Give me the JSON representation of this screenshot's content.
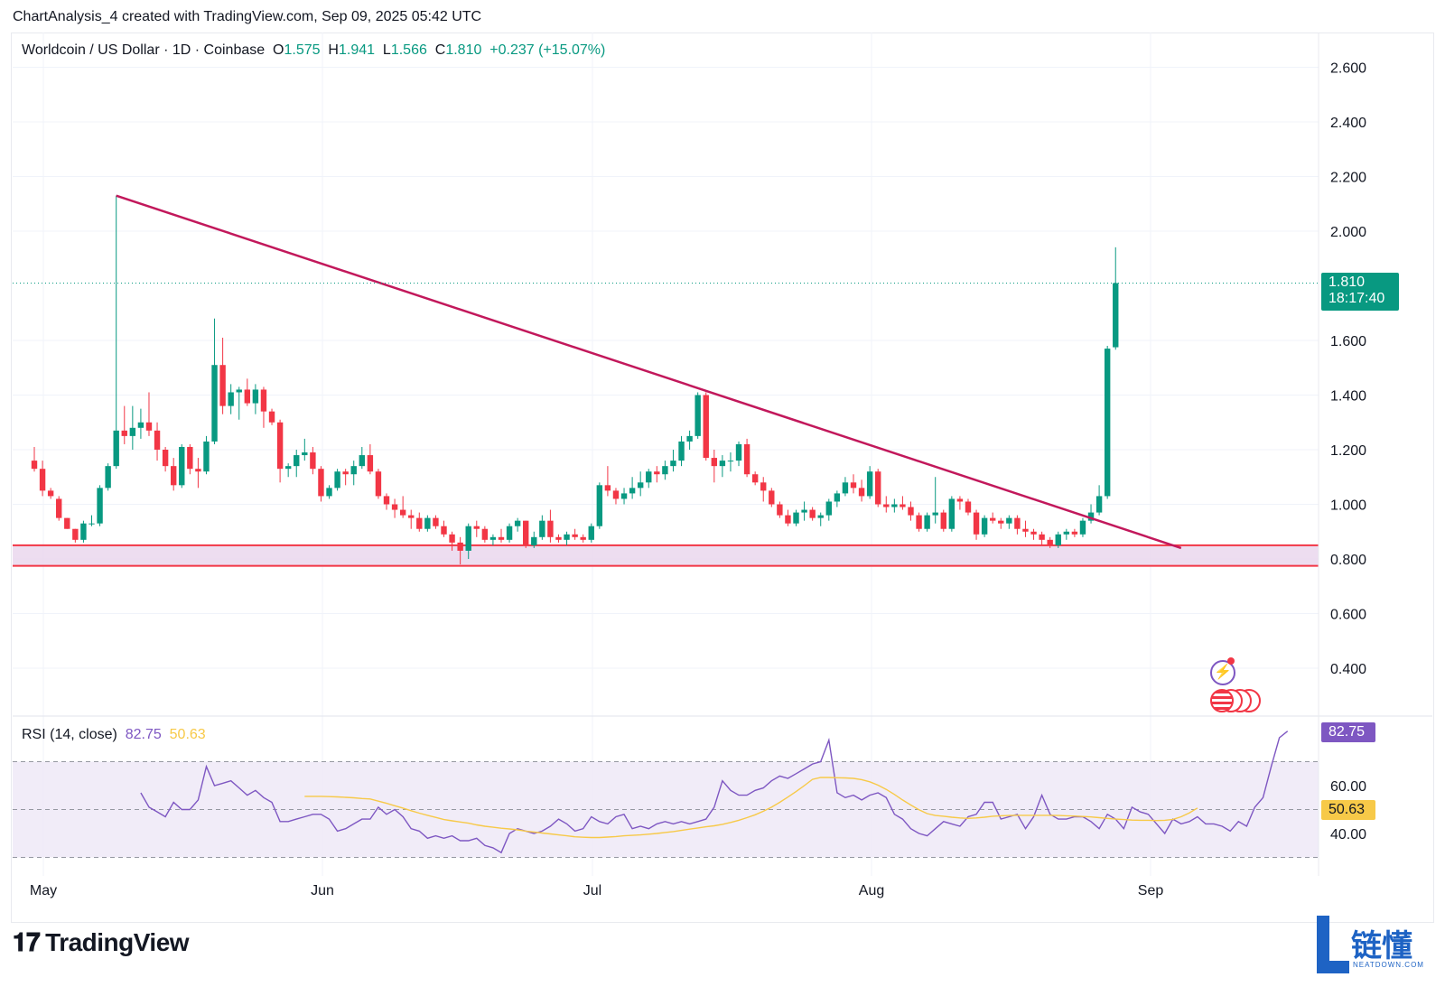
{
  "header": {
    "title": "ChartAnalysis_4 created with TradingView.com, Sep 09, 2025 05:42 UTC"
  },
  "legend": {
    "symbol": "Worldcoin / US Dollar · 1D · Coinbase",
    "o_label": "O",
    "o_value": "1.575",
    "h_label": "H",
    "h_value": "1.941",
    "l_label": "L",
    "l_value": "1.566",
    "c_label": "C",
    "c_value": "1.810",
    "change": "+0.237 (+15.07%)"
  },
  "price_tag": {
    "price": "1.810",
    "countdown": "18:17:40"
  },
  "rsi_legend": {
    "label": "RSI (14, close)",
    "rsi": "82.75",
    "ma": "50.63"
  },
  "rsi_tag": "82.75",
  "rsi_ma_tag": "50.63",
  "logo": {
    "text": "TradingView"
  },
  "watermark": {
    "text": "链懂",
    "sub": "NEATDOWN.COM"
  },
  "colors": {
    "up": "#089981",
    "down": "#f23645",
    "trendline": "#c2185b",
    "support_fill": "#e8d4ec",
    "rsi_line": "#7e57c2",
    "rsi_ma": "#f7c948",
    "rsi_band": "#ede7f6"
  },
  "chart_data": [
    {
      "type": "candlestick",
      "title": "Worldcoin / US Dollar · 1D · Coinbase",
      "ylim": [
        0.25,
        2.65
      ],
      "y_ticks": [
        "2.600",
        "2.400",
        "2.200",
        "2.000",
        "1.600",
        "1.400",
        "1.200",
        "1.000",
        "0.800",
        "0.600",
        "0.400"
      ],
      "x_ticks": [
        "May",
        "Jun",
        "Jul",
        "Aug",
        "Sep"
      ],
      "candles": [
        [
          1.16,
          1.21,
          1.12,
          1.13
        ],
        [
          1.13,
          1.16,
          1.03,
          1.05
        ],
        [
          1.05,
          1.06,
          1.02,
          1.03
        ],
        [
          1.02,
          1.03,
          0.94,
          0.95
        ],
        [
          0.95,
          0.95,
          0.91,
          0.91
        ],
        [
          0.91,
          0.91,
          0.86,
          0.87
        ],
        [
          0.87,
          0.94,
          0.86,
          0.93
        ],
        [
          0.93,
          0.96,
          0.92,
          0.93
        ],
        [
          0.93,
          1.07,
          0.92,
          1.06
        ],
        [
          1.06,
          1.15,
          1.05,
          1.14
        ],
        [
          1.14,
          2.13,
          1.13,
          1.27
        ],
        [
          1.27,
          1.36,
          1.22,
          1.25
        ],
        [
          1.25,
          1.36,
          1.2,
          1.28
        ],
        [
          1.28,
          1.35,
          1.24,
          1.3
        ],
        [
          1.3,
          1.41,
          1.25,
          1.27
        ],
        [
          1.27,
          1.3,
          1.16,
          1.2
        ],
        [
          1.2,
          1.21,
          1.12,
          1.14
        ],
        [
          1.14,
          1.17,
          1.05,
          1.07
        ],
        [
          1.07,
          1.22,
          1.06,
          1.21
        ],
        [
          1.21,
          1.22,
          1.11,
          1.13
        ],
        [
          1.13,
          1.17,
          1.06,
          1.12
        ],
        [
          1.12,
          1.25,
          1.11,
          1.23
        ],
        [
          1.23,
          1.68,
          1.22,
          1.51
        ],
        [
          1.51,
          1.61,
          1.33,
          1.36
        ],
        [
          1.36,
          1.44,
          1.33,
          1.41
        ],
        [
          1.41,
          1.43,
          1.31,
          1.42
        ],
        [
          1.42,
          1.46,
          1.36,
          1.37
        ],
        [
          1.37,
          1.44,
          1.33,
          1.42
        ],
        [
          1.42,
          1.43,
          1.28,
          1.34
        ],
        [
          1.34,
          1.35,
          1.29,
          1.3
        ],
        [
          1.3,
          1.31,
          1.08,
          1.13
        ],
        [
          1.13,
          1.15,
          1.1,
          1.14
        ],
        [
          1.14,
          1.2,
          1.1,
          1.18
        ],
        [
          1.18,
          1.24,
          1.16,
          1.19
        ],
        [
          1.19,
          1.21,
          1.11,
          1.13
        ],
        [
          1.13,
          1.14,
          1.01,
          1.03
        ],
        [
          1.03,
          1.07,
          1.02,
          1.06
        ],
        [
          1.06,
          1.13,
          1.05,
          1.12
        ],
        [
          1.12,
          1.13,
          1.07,
          1.11
        ],
        [
          1.11,
          1.16,
          1.07,
          1.14
        ],
        [
          1.14,
          1.21,
          1.13,
          1.18
        ],
        [
          1.18,
          1.22,
          1.11,
          1.12
        ],
        [
          1.12,
          1.13,
          1.02,
          1.03
        ],
        [
          1.03,
          1.04,
          0.98,
          1.0
        ],
        [
          1.0,
          1.02,
          0.95,
          0.98
        ],
        [
          0.98,
          1.03,
          0.95,
          0.96
        ],
        [
          0.96,
          0.98,
          0.91,
          0.95
        ],
        [
          0.95,
          0.97,
          0.9,
          0.91
        ],
        [
          0.91,
          0.96,
          0.9,
          0.95
        ],
        [
          0.95,
          0.96,
          0.91,
          0.92
        ],
        [
          0.92,
          0.94,
          0.88,
          0.89
        ],
        [
          0.89,
          0.9,
          0.83,
          0.86
        ],
        [
          0.86,
          0.88,
          0.78,
          0.83
        ],
        [
          0.83,
          0.93,
          0.8,
          0.92
        ],
        [
          0.92,
          0.94,
          0.88,
          0.91
        ],
        [
          0.91,
          0.92,
          0.86,
          0.87
        ],
        [
          0.87,
          0.89,
          0.85,
          0.88
        ],
        [
          0.88,
          0.91,
          0.86,
          0.87
        ],
        [
          0.87,
          0.93,
          0.86,
          0.92
        ],
        [
          0.92,
          0.95,
          0.9,
          0.94
        ],
        [
          0.94,
          0.94,
          0.84,
          0.85
        ],
        [
          0.85,
          0.9,
          0.84,
          0.88
        ],
        [
          0.88,
          0.96,
          0.87,
          0.94
        ],
        [
          0.94,
          0.98,
          0.86,
          0.88
        ],
        [
          0.88,
          0.89,
          0.86,
          0.87
        ],
        [
          0.87,
          0.9,
          0.85,
          0.89
        ],
        [
          0.89,
          0.91,
          0.87,
          0.88
        ],
        [
          0.88,
          0.89,
          0.86,
          0.87
        ],
        [
          0.87,
          0.93,
          0.86,
          0.92
        ],
        [
          0.92,
          1.08,
          0.91,
          1.07
        ],
        [
          1.07,
          1.14,
          1.03,
          1.05
        ],
        [
          1.05,
          1.06,
          1.0,
          1.02
        ],
        [
          1.02,
          1.06,
          1.0,
          1.04
        ],
        [
          1.04,
          1.1,
          1.02,
          1.06
        ],
        [
          1.06,
          1.12,
          1.03,
          1.08
        ],
        [
          1.08,
          1.13,
          1.06,
          1.12
        ],
        [
          1.12,
          1.14,
          1.08,
          1.11
        ],
        [
          1.11,
          1.16,
          1.09,
          1.14
        ],
        [
          1.14,
          1.2,
          1.12,
          1.16
        ],
        [
          1.16,
          1.25,
          1.14,
          1.23
        ],
        [
          1.23,
          1.27,
          1.2,
          1.25
        ],
        [
          1.25,
          1.41,
          1.24,
          1.4
        ],
        [
          1.4,
          1.41,
          1.16,
          1.17
        ],
        [
          1.17,
          1.2,
          1.08,
          1.14
        ],
        [
          1.14,
          1.18,
          1.1,
          1.16
        ],
        [
          1.16,
          1.19,
          1.12,
          1.16
        ],
        [
          1.16,
          1.23,
          1.14,
          1.22
        ],
        [
          1.22,
          1.24,
          1.1,
          1.11
        ],
        [
          1.11,
          1.12,
          1.07,
          1.08
        ],
        [
          1.08,
          1.1,
          1.01,
          1.05
        ],
        [
          1.05,
          1.06,
          0.99,
          1.0
        ],
        [
          1.0,
          1.01,
          0.95,
          0.96
        ],
        [
          0.96,
          0.98,
          0.92,
          0.93
        ],
        [
          0.93,
          0.98,
          0.92,
          0.97
        ],
        [
          0.97,
          1.01,
          0.94,
          0.98
        ],
        [
          0.98,
          0.99,
          0.94,
          0.95
        ],
        [
          0.95,
          0.97,
          0.92,
          0.96
        ],
        [
          0.96,
          1.02,
          0.94,
          1.01
        ],
        [
          1.01,
          1.05,
          0.99,
          1.04
        ],
        [
          1.04,
          1.1,
          1.03,
          1.08
        ],
        [
          1.08,
          1.11,
          1.04,
          1.06
        ],
        [
          1.06,
          1.09,
          1.01,
          1.03
        ],
        [
          1.03,
          1.14,
          1.02,
          1.12
        ],
        [
          1.12,
          1.13,
          0.99,
          1.0
        ],
        [
          1.0,
          1.03,
          0.97,
          0.99
        ],
        [
          0.99,
          1.02,
          0.97,
          1.0
        ],
        [
          1.0,
          1.03,
          0.98,
          0.99
        ],
        [
          0.99,
          1.01,
          0.94,
          0.96
        ],
        [
          0.96,
          0.97,
          0.9,
          0.91
        ],
        [
          0.91,
          0.97,
          0.9,
          0.96
        ],
        [
          0.96,
          1.1,
          0.93,
          0.97
        ],
        [
          0.97,
          0.98,
          0.9,
          0.91
        ],
        [
          0.91,
          1.03,
          0.9,
          1.02
        ],
        [
          1.02,
          1.03,
          0.98,
          1.01
        ],
        [
          1.01,
          1.02,
          0.96,
          0.97
        ],
        [
          0.97,
          0.98,
          0.87,
          0.89
        ],
        [
          0.89,
          0.96,
          0.88,
          0.95
        ],
        [
          0.95,
          0.97,
          0.93,
          0.94
        ],
        [
          0.94,
          0.95,
          0.91,
          0.93
        ],
        [
          0.93,
          0.96,
          0.91,
          0.95
        ],
        [
          0.95,
          0.96,
          0.89,
          0.91
        ],
        [
          0.91,
          0.94,
          0.88,
          0.9
        ],
        [
          0.9,
          0.91,
          0.87,
          0.89
        ],
        [
          0.89,
          0.9,
          0.85,
          0.87
        ],
        [
          0.87,
          0.88,
          0.84,
          0.85
        ],
        [
          0.85,
          0.9,
          0.84,
          0.89
        ],
        [
          0.89,
          0.91,
          0.87,
          0.9
        ],
        [
          0.9,
          0.91,
          0.88,
          0.89
        ],
        [
          0.89,
          0.95,
          0.88,
          0.94
        ],
        [
          0.94,
          1.0,
          0.93,
          0.97
        ],
        [
          0.97,
          1.07,
          0.96,
          1.03
        ],
        [
          1.03,
          1.58,
          1.02,
          1.57
        ],
        [
          1.575,
          1.941,
          1.566,
          1.81
        ]
      ],
      "trendline": {
        "from": [
          10,
          2.13
        ],
        "to": [
          140,
          0.84
        ]
      },
      "support_zone": [
        0.775,
        0.85
      ],
      "last_price": 1.81
    },
    {
      "type": "line",
      "title": "RSI (14, close)",
      "ylim": [
        29,
        86
      ],
      "y_ticks": [
        "60.00",
        "40.00"
      ],
      "bands": {
        "upper": 70,
        "middle": 50,
        "lower": 30
      },
      "series": [
        {
          "name": "RSI",
          "start_index": 13,
          "values": [
            57,
            51,
            49,
            47,
            53,
            50,
            50,
            54,
            68,
            60,
            61,
            62,
            59,
            56,
            58,
            55,
            53,
            45,
            45,
            46,
            47,
            48,
            48,
            46,
            41,
            42,
            44,
            46,
            46,
            51,
            48,
            50,
            47,
            42,
            41,
            38,
            39,
            38,
            39,
            37,
            37,
            38,
            35,
            34,
            32,
            40,
            42,
            41,
            40,
            41,
            43,
            46,
            44,
            41,
            42,
            47,
            45,
            44,
            47,
            48,
            42,
            43,
            42,
            44,
            45,
            44,
            45,
            44,
            45,
            46,
            51,
            62,
            58,
            56,
            56,
            58,
            59,
            62,
            64,
            63,
            65,
            67,
            69,
            70,
            79,
            57,
            55,
            56,
            54,
            56,
            57,
            55,
            48,
            46,
            42,
            40,
            39,
            42,
            45,
            44,
            43,
            47,
            48,
            53,
            53,
            46,
            47,
            48,
            42,
            47,
            56,
            48,
            46,
            46,
            47,
            47,
            45,
            42,
            48,
            46,
            42,
            51,
            49,
            48,
            44,
            40,
            46,
            44,
            45,
            47,
            44,
            44,
            43,
            41,
            45,
            43,
            51,
            55,
            68,
            80,
            82.75
          ]
        },
        {
          "name": "RSI MA",
          "start_index": 33,
          "values": [
            55.5,
            55.5,
            55.5,
            55.4,
            55.3,
            55.1,
            54.9,
            54.6,
            54.4,
            53.5,
            52.6,
            51.6,
            50.6,
            49.5,
            48.5,
            47.6,
            46.7,
            45.8,
            45.3,
            44.8,
            44.3,
            43.6,
            43.0,
            42.6,
            42.2,
            41.9,
            41.5,
            41.0,
            40.6,
            40.2,
            39.8,
            39.4,
            39.0,
            38.6,
            38.4,
            38.3,
            38.3,
            38.5,
            38.7,
            39.0,
            39.2,
            39.4,
            39.7,
            40.0,
            40.4,
            40.8,
            41.3,
            41.8,
            42.3,
            42.8,
            43.2,
            43.8,
            44.6,
            45.5,
            46.6,
            47.8,
            49.3,
            51.0,
            53.0,
            55.2,
            57.5,
            60.0,
            62.6,
            63.4,
            63.4,
            63.3,
            63.2,
            63.0,
            62.5,
            61.6,
            60.2,
            58.4,
            56.3,
            54.0,
            51.9,
            49.9,
            48.3,
            47.5,
            47.2,
            46.8,
            46.5,
            46.3,
            46.5,
            46.8,
            47.2,
            47.4,
            47.5,
            47.6,
            47.6,
            47.6,
            47.6,
            47.6,
            47.5,
            47.4,
            47.3,
            47.1,
            46.9,
            46.6,
            46.3,
            46.0,
            45.8,
            45.6,
            45.5,
            45.5,
            45.4,
            45.5,
            45.9,
            47.0,
            48.6,
            50.63
          ]
        }
      ]
    }
  ]
}
